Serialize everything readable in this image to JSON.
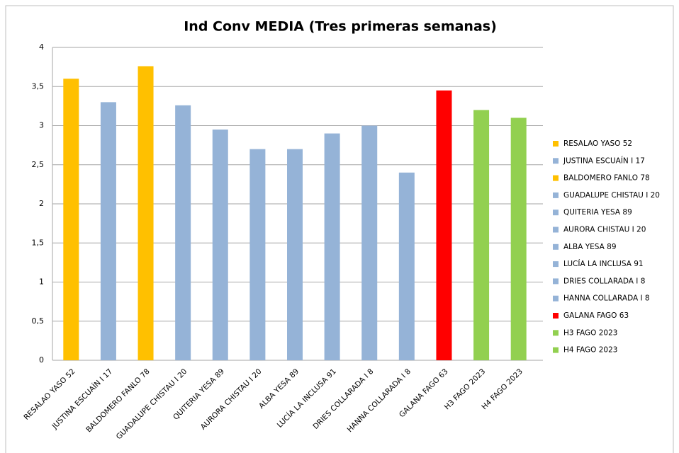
{
  "chart_data": {
    "type": "bar",
    "title": "Ind Conv MEDIA (Tres primeras semanas)",
    "categories": [
      "RESALAO YASO 52",
      "JUSTINA ESCUAÍN I 17",
      "BALDOMERO FANLO 78",
      "GUADALUPE CHISTAU I 20",
      "QUITERIA YESA 89",
      "AURORA CHISTAU I 20",
      "ALBA YESA 89",
      "LUCÍA LA INCLUSA 91",
      "DRIES COLLARADA I 8",
      "HANNA COLLARADA I 8",
      "GALANA FAGO 63",
      "H3 FAGO 2023",
      "H4 FAGO 2023"
    ],
    "values": [
      3.6,
      3.3,
      3.76,
      3.26,
      2.95,
      2.7,
      2.7,
      2.9,
      3.0,
      2.4,
      3.45,
      3.2,
      3.1
    ],
    "colors": [
      "#ffc000",
      "#95b3d7",
      "#ffc000",
      "#95b3d7",
      "#95b3d7",
      "#95b3d7",
      "#95b3d7",
      "#95b3d7",
      "#95b3d7",
      "#95b3d7",
      "#ff0000",
      "#92d050",
      "#92d050"
    ],
    "ylim": [
      0,
      4
    ],
    "yticks": [
      0,
      {
        "value": 0.5,
        "label": "0,5"
      },
      1,
      {
        "value": 1.5,
        "label": "1,5"
      },
      2,
      {
        "value": 2.5,
        "label": "2,5"
      },
      3,
      {
        "value": 3.5,
        "label": "3,5"
      },
      4
    ],
    "grid": true,
    "legend": "right"
  }
}
